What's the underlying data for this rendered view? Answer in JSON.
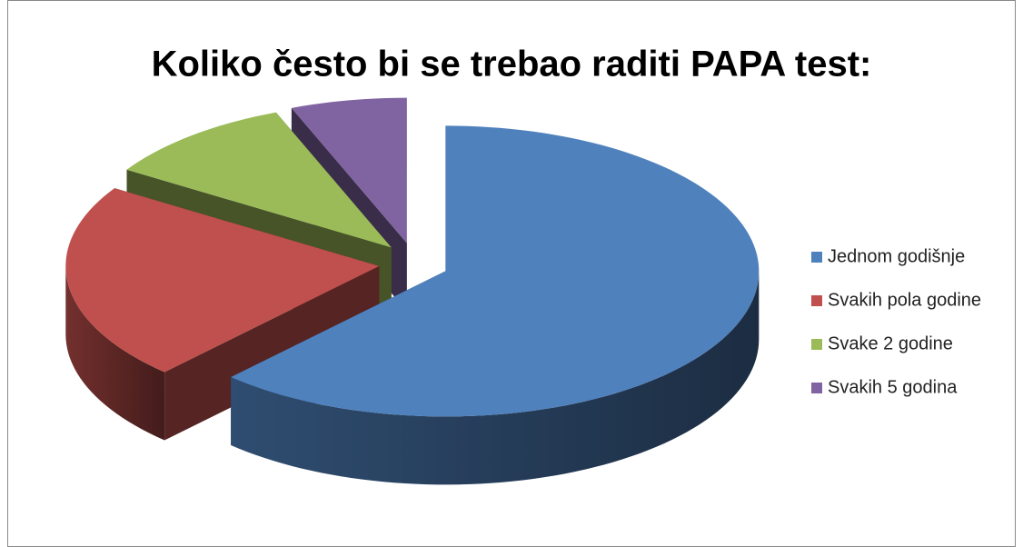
{
  "chart_data": {
    "type": "pie3d",
    "title": "Koliko često bi se trebao raditi PAPA test:",
    "categories": [
      "Jednom godišnje",
      "Svakih pola godine",
      "Svake 2 godine",
      "Svakih 5 godina"
    ],
    "values": [
      62,
      22,
      10,
      6
    ],
    "colors": [
      "#4f81bd",
      "#c0504d",
      "#9bbb59",
      "#8064a2"
    ],
    "legend": "right"
  }
}
